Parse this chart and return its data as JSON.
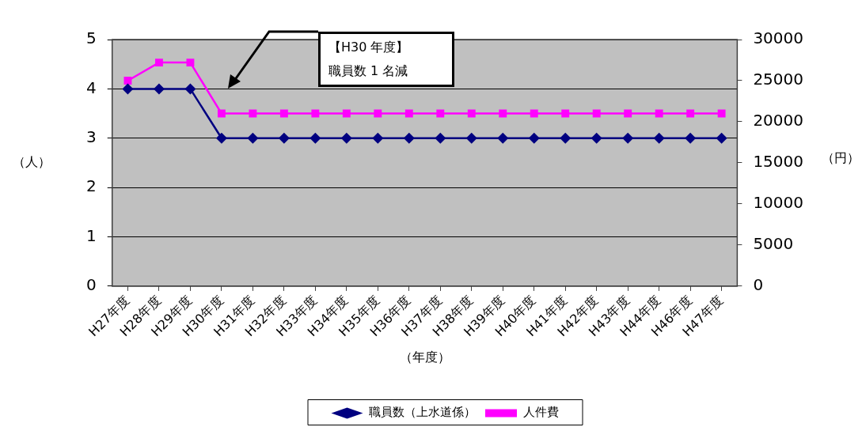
{
  "chart_data": {
    "type": "line",
    "xlabel": "（年度）",
    "ylabel": "（人）",
    "y2label": "（円）",
    "categories": [
      "H27年度",
      "H28年度",
      "H29年度",
      "H30年度",
      "H31年度",
      "H32年度",
      "H33年度",
      "H34年度",
      "H35年度",
      "H36年度",
      "H37年度",
      "H38年度",
      "H39年度",
      "H40年度",
      "H41年度",
      "H42年度",
      "H43年度",
      "H44年度",
      "H46年度",
      "H47年度"
    ],
    "series": [
      {
        "name": "職員数（上水道係）",
        "color": "#000080",
        "marker": "diamond",
        "values": [
          4,
          4,
          4,
          3,
          3,
          3,
          3,
          3,
          3,
          3,
          3,
          3,
          3,
          3,
          3,
          3,
          3,
          3,
          3,
          3
        ]
      },
      {
        "name": "人件費",
        "color": "#ff00ff",
        "marker": "square",
        "axis": "y2",
        "values": [
          25000,
          27200,
          27200,
          21000,
          21000,
          21000,
          21000,
          21000,
          21000,
          21000,
          21000,
          21000,
          21000,
          21000,
          21000,
          21000,
          21000,
          21000,
          21000,
          21000
        ]
      }
    ],
    "ylim": [
      0,
      5
    ],
    "yticks": [
      0,
      1,
      2,
      3,
      4,
      5
    ],
    "y2lim": [
      0,
      30000
    ],
    "y2ticks": [
      0,
      5000,
      10000,
      15000,
      20000,
      25000,
      30000
    ],
    "grid": "y",
    "legend": "bottom",
    "line_style": "solid",
    "annotations": [
      "【H30 年度】",
      "職員数 1 名減"
    ]
  }
}
